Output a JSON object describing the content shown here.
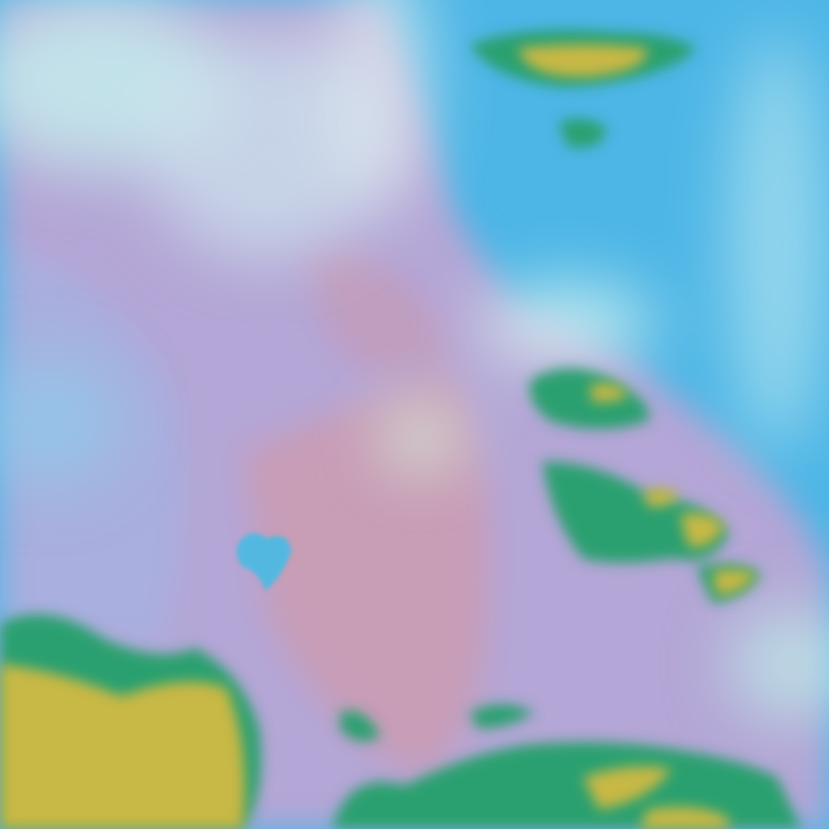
{
  "image": {
    "kind": "false-color satellite imagery",
    "colors": {
      "clear_sky": "#4db6e6",
      "land": "#b4a6d6",
      "land_warm": "#d09aa8",
      "thin_cloud": "#c6f0ee",
      "cold_cloud_top": "#c8b844",
      "cloud_edge": "#2aa070",
      "lake": "#52b8e0"
    }
  }
}
